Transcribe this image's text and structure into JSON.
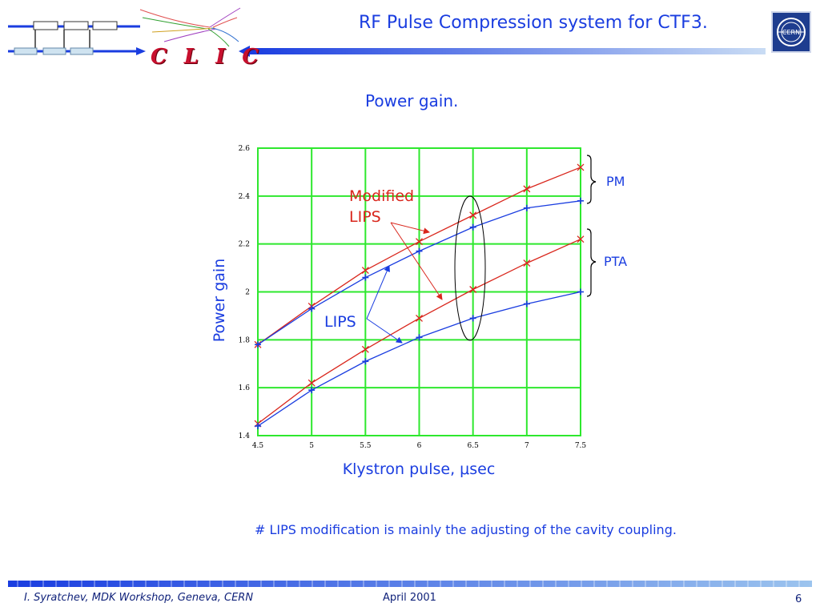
{
  "header": {
    "title": "RF Pulse Compression system for CTF3.",
    "logo_text": "C L I C",
    "cern_logo_text": "CERN"
  },
  "subtitle": "Power gain.",
  "chart_data": {
    "type": "line",
    "title": "",
    "xlabel": "Klystron pulse, μsec",
    "ylabel": "Power gain",
    "xlim": [
      4.5,
      7.5
    ],
    "ylim": [
      1.4,
      2.6
    ],
    "x_ticks": [
      "4.5",
      "5",
      "5.5",
      "6",
      "6.5",
      "7",
      "7.5"
    ],
    "y_ticks": [
      "1.4",
      "1.6",
      "1.8",
      "2",
      "2.2",
      "2.4",
      "2.6"
    ],
    "grid": true,
    "grid_color": "#2ee82e",
    "x": [
      4.5,
      5,
      5.5,
      6,
      6.5,
      7,
      7.5
    ],
    "series": [
      {
        "color": "#d9261c",
        "marker": "x",
        "values": [
          1.78,
          1.94,
          2.09,
          2.21,
          2.32,
          2.43,
          2.52
        ]
      },
      {
        "color": "#1a3de0",
        "marker": "+",
        "values": [
          1.78,
          1.93,
          2.06,
          2.17,
          2.27,
          2.35,
          2.38
        ]
      },
      {
        "color": "#d9261c",
        "marker": "x",
        "values": [
          1.45,
          1.62,
          1.76,
          1.89,
          2.01,
          2.12,
          2.22
        ]
      },
      {
        "color": "#1a3de0",
        "marker": "+",
        "values": [
          1.44,
          1.59,
          1.71,
          1.81,
          1.89,
          1.95,
          2.0
        ]
      }
    ],
    "annotations": {
      "modified_lips": [
        "Modified",
        "LIPS"
      ],
      "lips": "LIPS",
      "pm": "PM",
      "pta": "PTA"
    }
  },
  "note": "# LIPS modification is mainly the adjusting of the cavity coupling.",
  "footer": {
    "left": "I. Syratchev, MDK Workshop, Geneva, CERN",
    "middle": "April 2001",
    "page": "6"
  },
  "colors": {
    "accent": "#1a3de0",
    "red": "#d9261c",
    "grid": "#2ee82e",
    "clic": "#c8102e",
    "cern_blue": "#1e3d8f"
  }
}
